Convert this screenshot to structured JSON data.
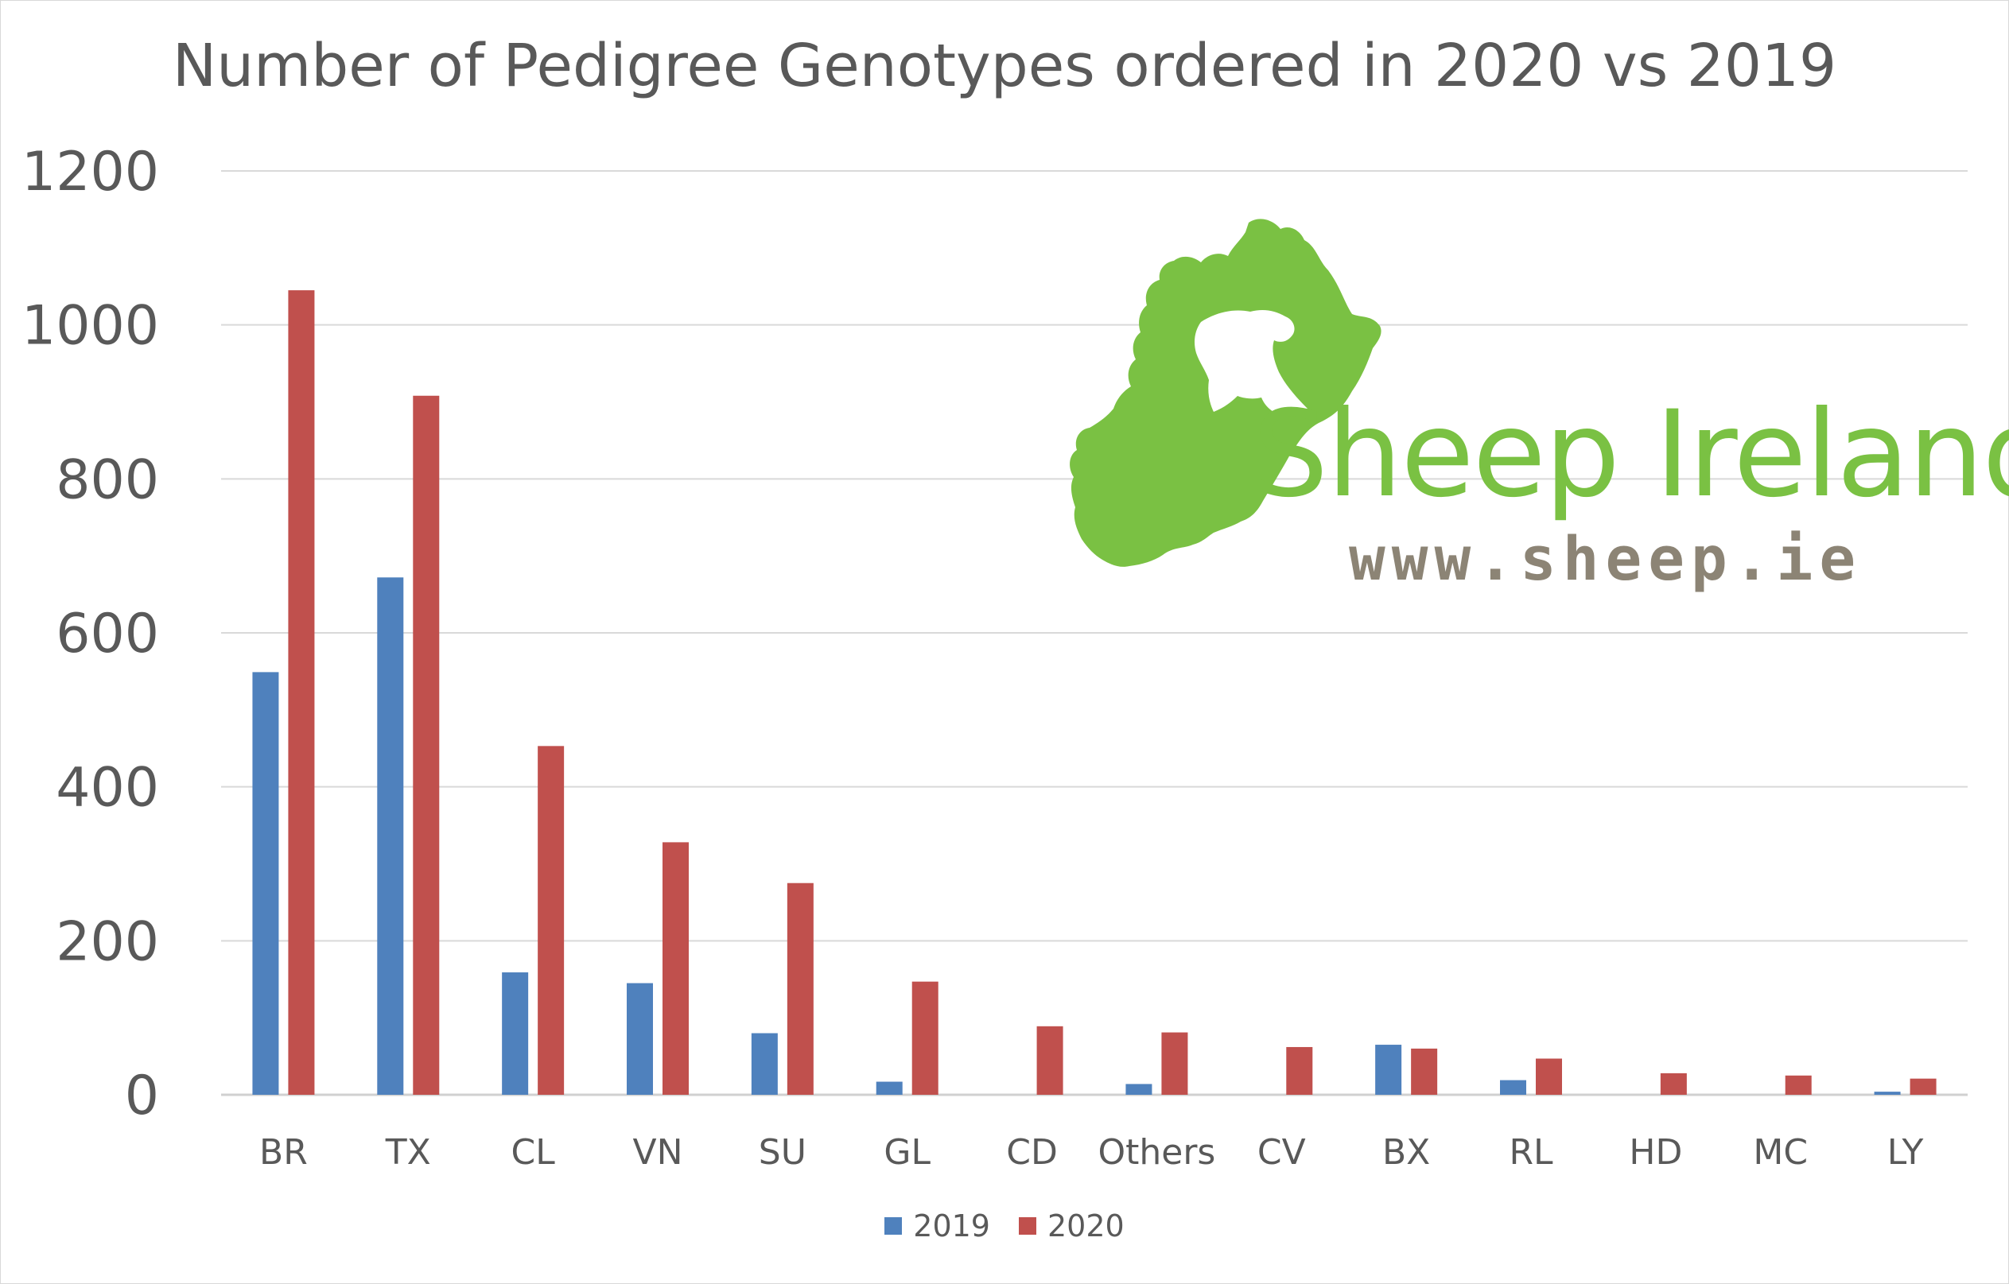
{
  "chart_data": {
    "type": "bar",
    "title": "Number of Pedigree Genotypes ordered in 2020 vs 2019",
    "xlabel": "",
    "ylabel": "",
    "ylim": [
      0,
      1200
    ],
    "yticks": [
      0,
      200,
      400,
      600,
      800,
      1000,
      1200
    ],
    "grid": true,
    "legend_position": "bottom",
    "categories": [
      "BR",
      "TX",
      "CL",
      "VN",
      "SU",
      "GL",
      "CD",
      "Others",
      "CV",
      "BX",
      "RL",
      "HD",
      "MC",
      "LY"
    ],
    "series": [
      {
        "name": "2019",
        "color": "#4f81bd",
        "values": [
          549,
          672,
          159,
          145,
          80,
          17,
          0,
          14,
          0,
          65,
          19,
          0,
          0,
          4
        ]
      },
      {
        "name": "2020",
        "color": "#c0504d",
        "values": [
          1045,
          908,
          453,
          328,
          275,
          147,
          89,
          81,
          62,
          60,
          47,
          28,
          25,
          21
        ]
      }
    ]
  },
  "logo": {
    "name": "Sheep Ireland",
    "url": "www.sheep.ie",
    "green": "#7ac143",
    "grey": "#8c8475"
  }
}
